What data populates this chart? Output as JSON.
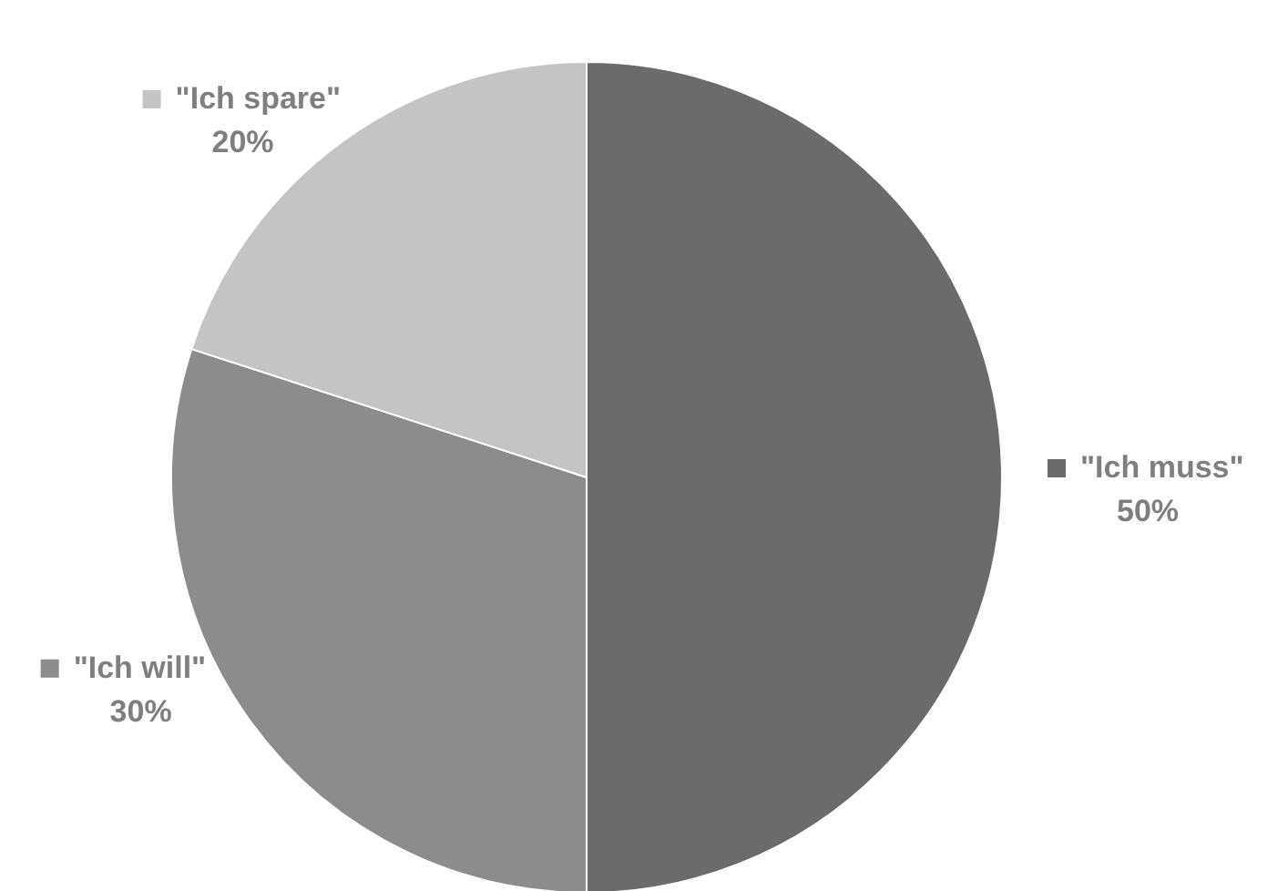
{
  "chart_data": {
    "type": "pie",
    "categories": [
      "\"Ich muss\"",
      "\"Ich will\"",
      "\"Ich spare\""
    ],
    "values": [
      50,
      30,
      20
    ],
    "colors": [
      "#6b6b6b",
      "#8c8c8c",
      "#c4c4c4"
    ],
    "value_labels": [
      "50%",
      "30%",
      "20%"
    ],
    "legend": "right"
  }
}
